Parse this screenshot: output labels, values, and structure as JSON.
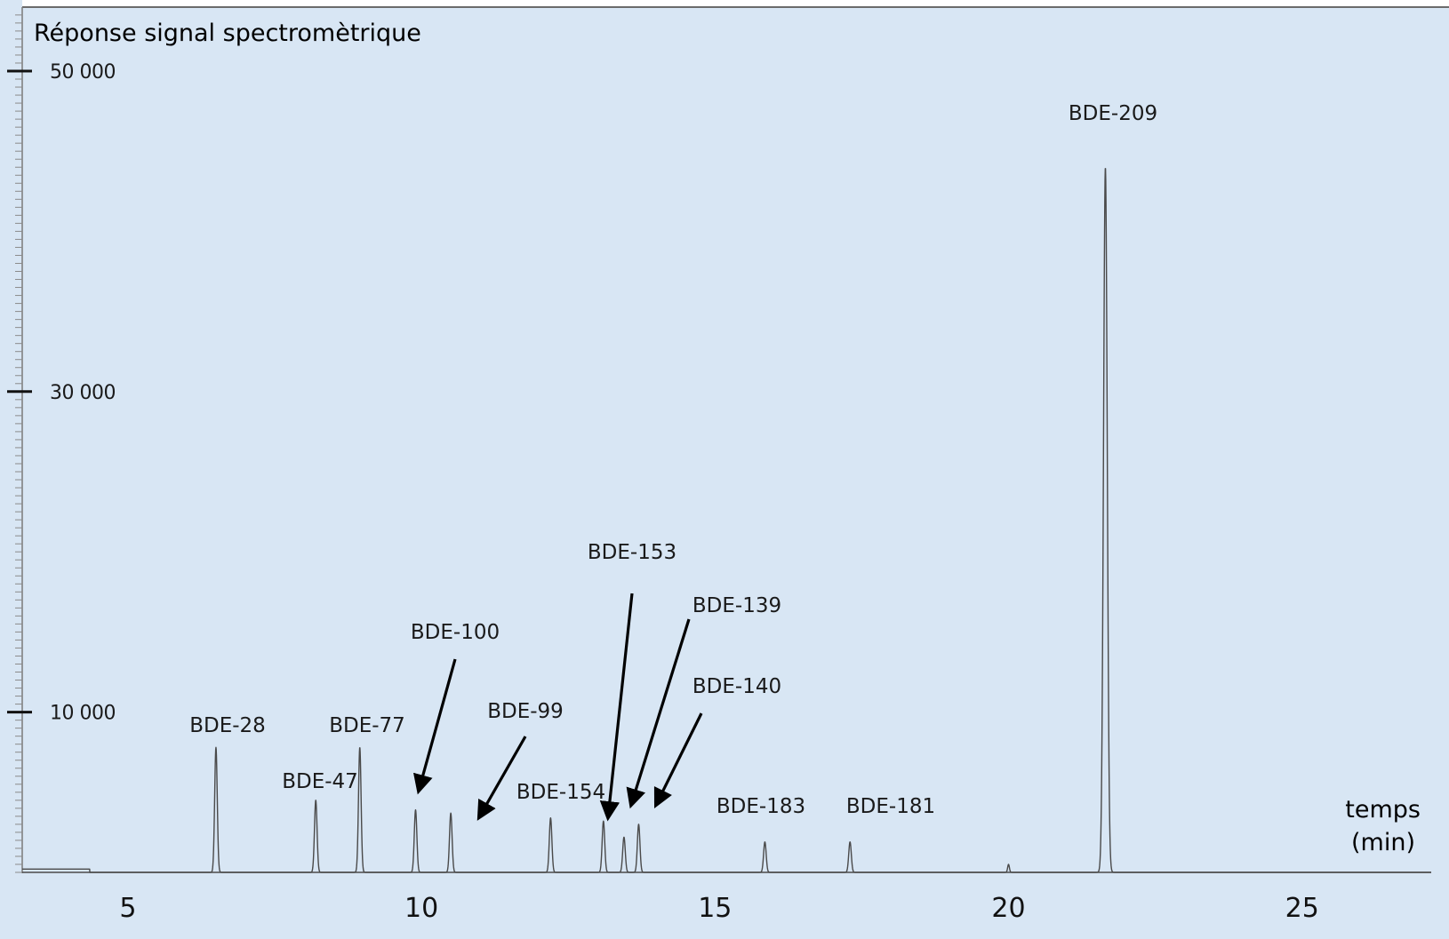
{
  "colors": {
    "background": "#d8e6f4",
    "trace": "#4a4a4a",
    "axis": "#333333",
    "arrow": "#000000"
  },
  "chart_data": {
    "type": "line",
    "ylabel": "Réponse signal spectromètrique",
    "xlabel_line1": "temps",
    "xlabel_line2": "(min)",
    "xlim": [
      3.2,
      27.2
    ],
    "ylim": [
      0,
      50000
    ],
    "xticks": [
      5,
      10,
      15,
      20,
      25
    ],
    "yticks": [
      {
        "value": 10000,
        "label": "10 000"
      },
      {
        "value": 30000,
        "label": "30 000"
      },
      {
        "value": 50000,
        "label": "50 000"
      }
    ],
    "grid": false,
    "peaks": [
      {
        "name": "BDE-28",
        "x": 6.5,
        "y": 7800,
        "label": "BDE-28"
      },
      {
        "name": "BDE-47",
        "x": 8.2,
        "y": 4500,
        "label": "BDE-47"
      },
      {
        "name": "BDE-77",
        "x": 8.95,
        "y": 7800,
        "label": "BDE-77"
      },
      {
        "name": "BDE-100",
        "x": 9.9,
        "y": 3900,
        "label": "BDE-100",
        "arrow": true
      },
      {
        "name": "BDE-99",
        "x": 10.5,
        "y": 3700,
        "label": "BDE-99",
        "arrow": true
      },
      {
        "name": "BDE-154",
        "x": 12.2,
        "y": 3400,
        "label": "BDE-154"
      },
      {
        "name": "BDE-153",
        "x": 13.1,
        "y": 3200,
        "label": "BDE-153",
        "arrow": true
      },
      {
        "name": "BDE-139",
        "x": 13.45,
        "y": 2200,
        "label": "BDE-139",
        "arrow": true
      },
      {
        "name": "BDE-140",
        "x": 13.7,
        "y": 3000,
        "label": "BDE-140",
        "arrow": true
      },
      {
        "name": "BDE-183",
        "x": 15.85,
        "y": 1900,
        "label": "BDE-183"
      },
      {
        "name": "BDE-181",
        "x": 17.3,
        "y": 1900,
        "label": "BDE-181"
      },
      {
        "name": "BDE-209",
        "x": 21.65,
        "y": 44000,
        "label": "BDE-209"
      }
    ]
  }
}
